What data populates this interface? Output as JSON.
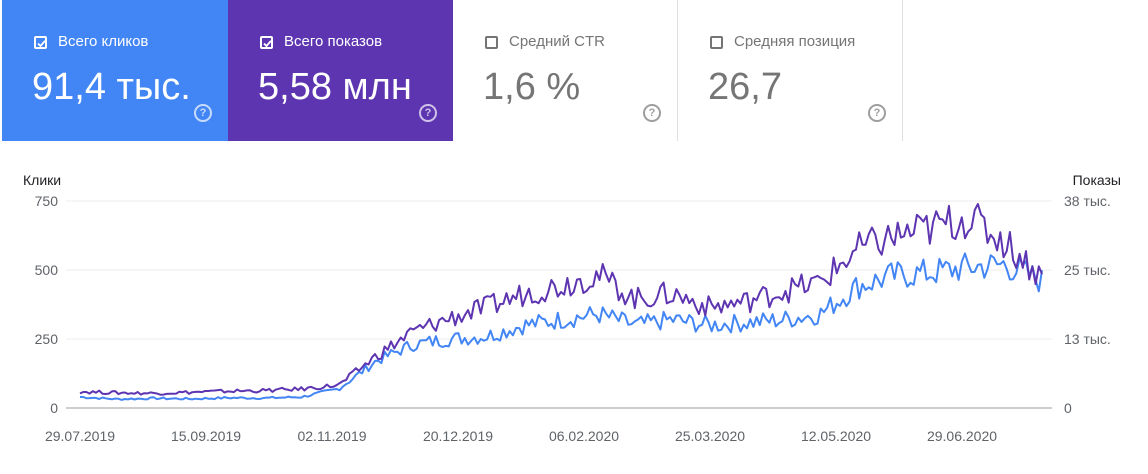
{
  "cards": [
    {
      "label": "Всего кликов",
      "value": "91,4 тыс.",
      "checked": true,
      "color": "#4285f4",
      "help_icon": "?"
    },
    {
      "label": "Всего показов",
      "value": "5,58 млн",
      "checked": true,
      "color": "#5e35b1",
      "help_icon": "?"
    },
    {
      "label": "Средний CTR",
      "value": "1,6 %",
      "checked": false,
      "color": "#ffffff",
      "help_icon": "?"
    },
    {
      "label": "Средняя позиция",
      "value": "26,7",
      "checked": false,
      "color": "#ffffff",
      "help_icon": "?"
    }
  ],
  "chart_data": {
    "type": "line",
    "x": [
      "29.07.2019",
      "12.08.2019",
      "26.08.2019",
      "09.09.2019",
      "23.09.2019",
      "07.10.2019",
      "21.10.2019",
      "04.11.2019",
      "18.11.2019",
      "02.12.2019",
      "16.12.2019",
      "30.12.2019",
      "13.01.2020",
      "27.01.2020",
      "10.02.2020",
      "24.02.2020",
      "09.03.2020",
      "23.03.2020",
      "06.04.2020",
      "20.04.2020",
      "04.05.2020",
      "18.05.2020",
      "01.06.2020",
      "15.06.2020",
      "29.06.2020",
      "13.07.2020",
      "27.07.2020"
    ],
    "xticks": [
      "29.07.2019",
      "15.09.2019",
      "02.11.2019",
      "20.12.2019",
      "06.02.2020",
      "25.03.2020",
      "12.05.2020",
      "29.06.2020"
    ],
    "ylabel_left": "Клики",
    "ylabel_right": "Показы",
    "yticks_left": [
      "0",
      "250",
      "500",
      "750"
    ],
    "yticks_right": [
      "0",
      "13 тыс.",
      "25 тыс.",
      "38 тыс."
    ],
    "ylim_left": [
      0,
      750
    ],
    "ylim_right": [
      0,
      38000
    ],
    "grid": true,
    "series": [
      {
        "color": "#4285f4",
        "axis": "left",
        "values": [
          40,
          32,
          35,
          33,
          37,
          36,
          40,
          70,
          170,
          230,
          250,
          260,
          300,
          320,
          340,
          300,
          320,
          300,
          310,
          320,
          340,
          440,
          480,
          490,
          510,
          520,
          460
        ]
      },
      {
        "color": "#5e35b1",
        "axis": "right",
        "values": [
          3000,
          2800,
          2700,
          2900,
          3100,
          3200,
          3500,
          4200,
          9500,
          14000,
          16500,
          18500,
          21000,
          22500,
          24500,
          20000,
          21000,
          18500,
          19500,
          21500,
          23000,
          29000,
          31500,
          33000,
          35000,
          30500,
          24000
        ]
      }
    ]
  }
}
